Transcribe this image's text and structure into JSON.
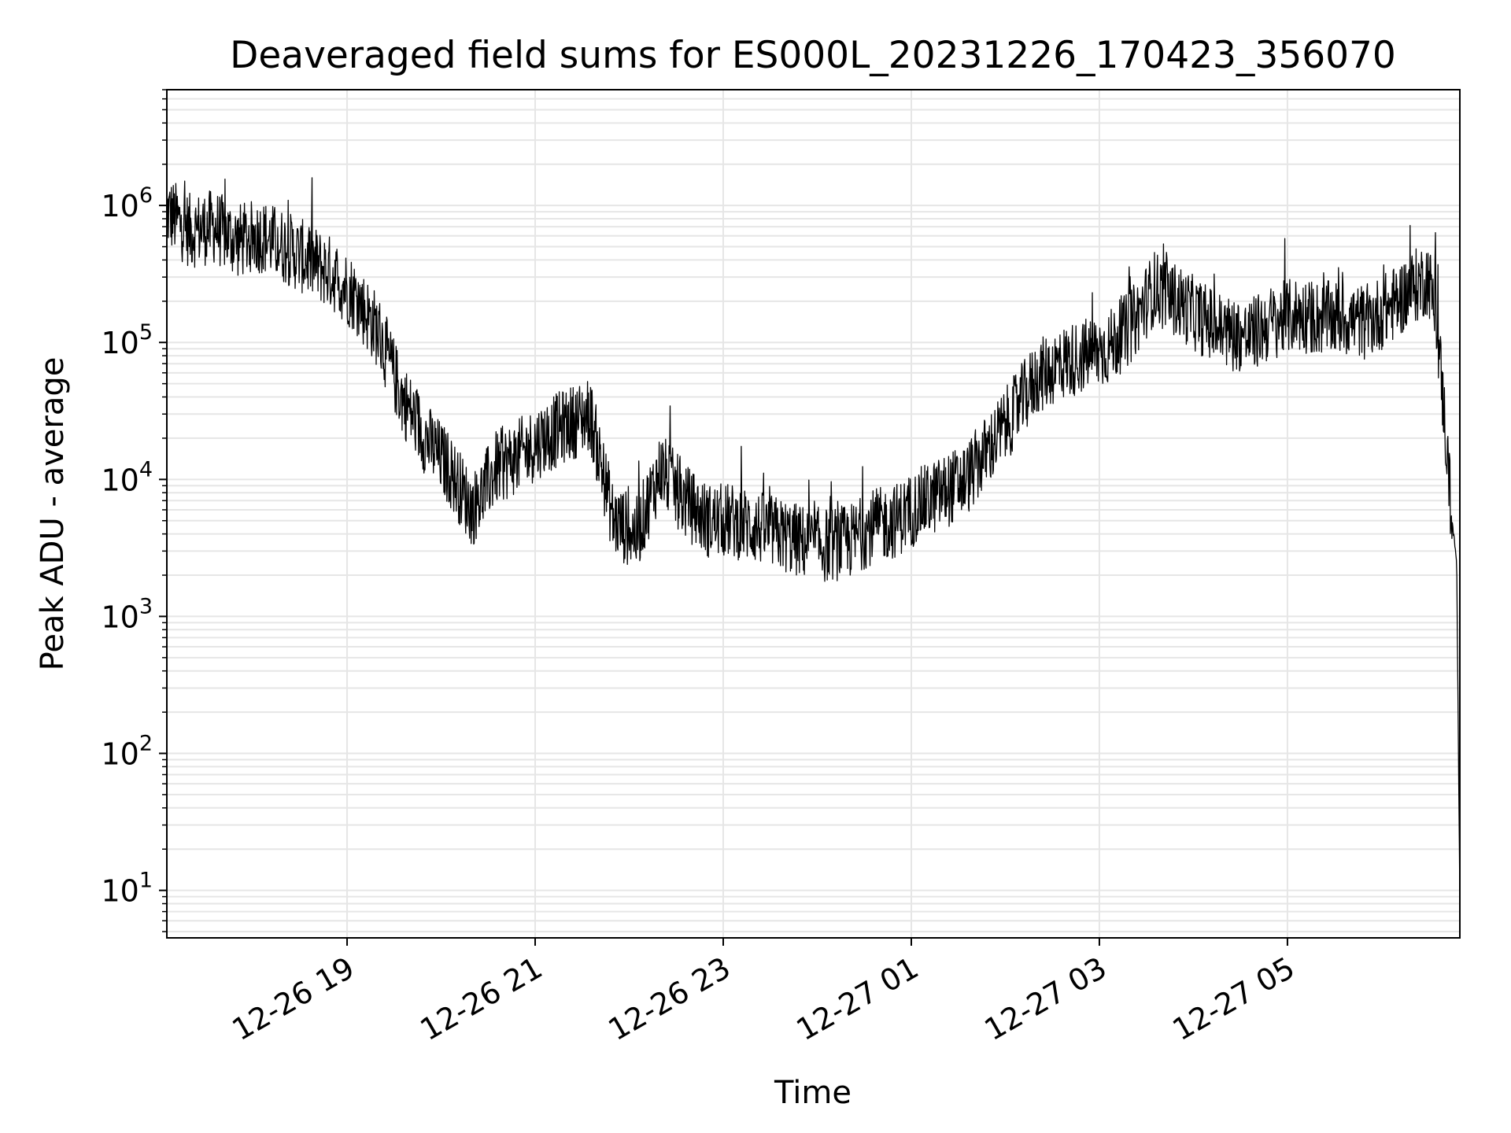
{
  "chart_data": {
    "type": "line",
    "title": "Deaveraged field sums for ES000L_20231226_170423_356070",
    "xlabel": "Time",
    "ylabel": "Peak ADU - average",
    "y_scale": "log",
    "ylim": [
      4.5,
      7000000
    ],
    "xlim": [
      "2023-12-26 17:05",
      "2023-12-27 06:50"
    ],
    "grid": true,
    "line_color": "#000000",
    "grid_color": "#e6e6e6",
    "x_ticks": [
      "2023-12-26 19:00",
      "2023-12-26 21:00",
      "2023-12-26 23:00",
      "2023-12-27 01:00",
      "2023-12-27 03:00",
      "2023-12-27 05:00"
    ],
    "x_tick_labels": [
      "12-26 19",
      "12-26 21",
      "12-26 23",
      "12-27 01",
      "12-27 03",
      "12-27 05"
    ],
    "y_ticks": [
      {
        "value": 10,
        "base": "10",
        "exp": "1"
      },
      {
        "value": 100,
        "base": "10",
        "exp": "2"
      },
      {
        "value": 1000,
        "base": "10",
        "exp": "3"
      },
      {
        "value": 10000,
        "base": "10",
        "exp": "4"
      },
      {
        "value": 100000,
        "base": "10",
        "exp": "5"
      },
      {
        "value": 1000000,
        "base": "10",
        "exp": "6"
      }
    ],
    "series": [
      {
        "x": [
          "2023-12-26 17:05",
          "2023-12-26 17:20",
          "2023-12-26 17:35",
          "2023-12-26 17:50",
          "2023-12-26 18:05",
          "2023-12-26 18:20",
          "2023-12-26 18:35",
          "2023-12-26 18:50",
          "2023-12-26 19:05",
          "2023-12-26 19:20",
          "2023-12-26 19:35",
          "2023-12-26 19:50",
          "2023-12-26 20:05",
          "2023-12-26 20:20",
          "2023-12-26 20:35",
          "2023-12-26 20:50",
          "2023-12-26 21:05",
          "2023-12-26 21:20",
          "2023-12-26 21:35",
          "2023-12-26 21:50",
          "2023-12-26 22:05",
          "2023-12-26 22:20",
          "2023-12-26 22:35",
          "2023-12-26 22:50",
          "2023-12-26 23:05",
          "2023-12-26 23:20",
          "2023-12-26 23:35",
          "2023-12-26 23:50",
          "2023-12-27 00:05",
          "2023-12-27 00:20",
          "2023-12-27 00:35",
          "2023-12-27 00:50",
          "2023-12-27 01:05",
          "2023-12-27 01:20",
          "2023-12-27 01:35",
          "2023-12-27 01:50",
          "2023-12-27 02:05",
          "2023-12-27 02:20",
          "2023-12-27 02:35",
          "2023-12-27 02:50",
          "2023-12-27 03:05",
          "2023-12-27 03:20",
          "2023-12-27 03:35",
          "2023-12-27 03:50",
          "2023-12-27 04:05",
          "2023-12-27 04:20",
          "2023-12-27 04:35",
          "2023-12-27 04:50",
          "2023-12-27 05:05",
          "2023-12-27 05:20",
          "2023-12-27 05:35",
          "2023-12-27 05:50",
          "2023-12-27 06:05",
          "2023-12-27 06:20",
          "2023-12-27 06:30",
          "2023-12-27 06:35",
          "2023-12-27 06:40",
          "2023-12-27 06:45",
          "2023-12-27 06:48",
          "2023-12-27 06:50"
        ],
        "values": [
          900000,
          650000,
          700000,
          550000,
          600000,
          500000,
          400000,
          320000,
          220000,
          120000,
          40000,
          20000,
          12000,
          6000,
          12000,
          15000,
          20000,
          25000,
          30000,
          5000,
          4000,
          12000,
          7000,
          5000,
          5000,
          4500,
          4000,
          3500,
          3300,
          3500,
          4500,
          5000,
          6500,
          8000,
          10000,
          17000,
          30000,
          55000,
          70000,
          80000,
          90000,
          130000,
          250000,
          200000,
          150000,
          120000,
          110000,
          140000,
          160000,
          150000,
          150000,
          140000,
          180000,
          250000,
          300000,
          150000,
          30000,
          5000,
          2500,
          8
        ]
      }
    ]
  }
}
